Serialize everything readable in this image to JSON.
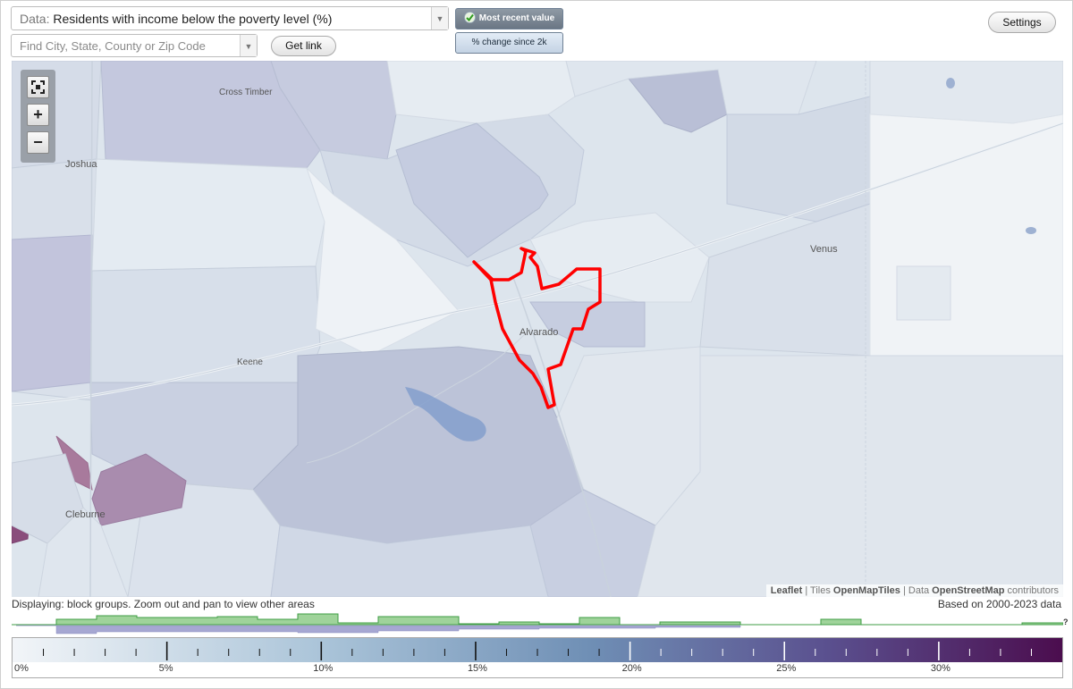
{
  "controls": {
    "data_prefix": "Data:",
    "data_value": "Residents with income below the poverty level (%)",
    "search_placeholder": "Find City, State, County or Zip Code",
    "get_link_label": "Get link",
    "mode_recent_label": "Most recent value",
    "mode_change_label": "% change since 2k",
    "settings_label": "Settings",
    "dropdown_icon": "triangle-down-icon",
    "check_icon": "green-check-icon"
  },
  "map": {
    "place_labels": [
      {
        "name": "Cross Timber"
      },
      {
        "name": "Joshua"
      },
      {
        "name": "Venus"
      },
      {
        "name": "Alvarado"
      },
      {
        "name": "Keene"
      },
      {
        "name": "Cleburne"
      }
    ],
    "zoom_controls": {
      "fullscreen_icon": "fullscreen-icon",
      "zoom_in": "+",
      "zoom_out": "−"
    },
    "boundary_color": "#ff0000",
    "attribution": {
      "leaflet": "Leaflet",
      "sep1": " | Tiles ",
      "tiles": "OpenMapTiles",
      "sep2": " | Data ",
      "data": "OpenStreetMap",
      "suffix": " contributors"
    }
  },
  "footer": {
    "displaying": "Displaying: block groups. Zoom out and pan to view other areas",
    "based_on": "Based on 2000-2023 data",
    "help_icon": "?"
  },
  "legend": {
    "range": [
      0,
      34
    ],
    "tick_labels": [
      "0%",
      "5%",
      "10%",
      "15%",
      "20%",
      "25%",
      "30%"
    ],
    "color_low": "#f2f5f8",
    "color_high": "#4b0d4e"
  }
}
